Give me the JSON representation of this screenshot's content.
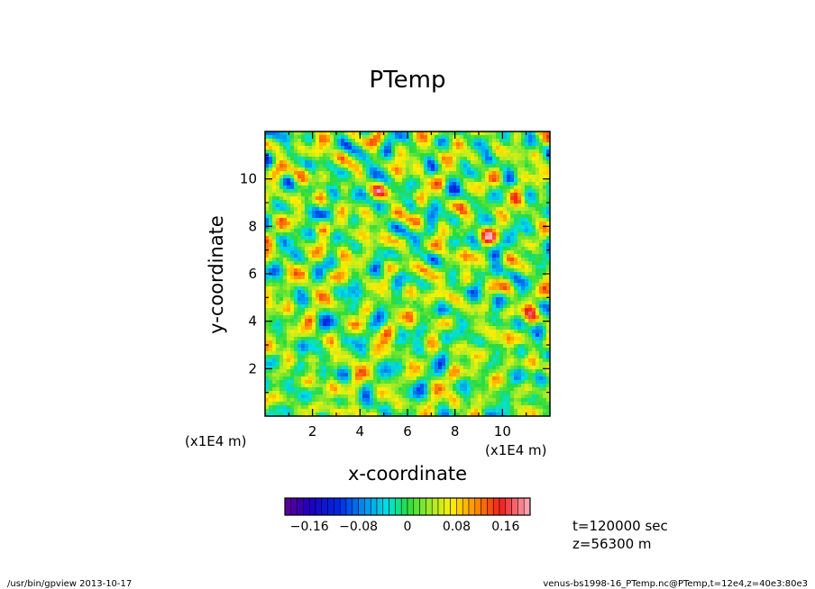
{
  "chart_data": {
    "type": "heatmap",
    "title": "PTemp",
    "xlabel": "x-coordinate",
    "ylabel": "y-coordinate",
    "x_unit": "(x1E4 m)",
    "y_unit": "(x1E4 m)",
    "xlim": [
      0,
      12
    ],
    "ylim": [
      0,
      12
    ],
    "x_ticks": [
      "2",
      "4",
      "6",
      "8",
      "10"
    ],
    "y_ticks": [
      "2",
      "4",
      "6",
      "8",
      "10"
    ],
    "colorbar": {
      "range": [
        -0.2,
        0.2
      ],
      "labels": [
        "−0.16",
        "−0.08",
        "0",
        "0.08",
        "0.16"
      ],
      "label_values": [
        -0.16,
        -0.08,
        0,
        0.08,
        0.16
      ],
      "levels": 40
    },
    "grid": false
  },
  "annotations": {
    "time": "t=120000 sec",
    "height": "z=56300 m"
  },
  "footer": {
    "left": "/usr/bin/gpview   2013-10-17",
    "right": "venus-bs1998-16_PTemp.nc@PTemp,t=12e4,z=40e3:80e3"
  }
}
